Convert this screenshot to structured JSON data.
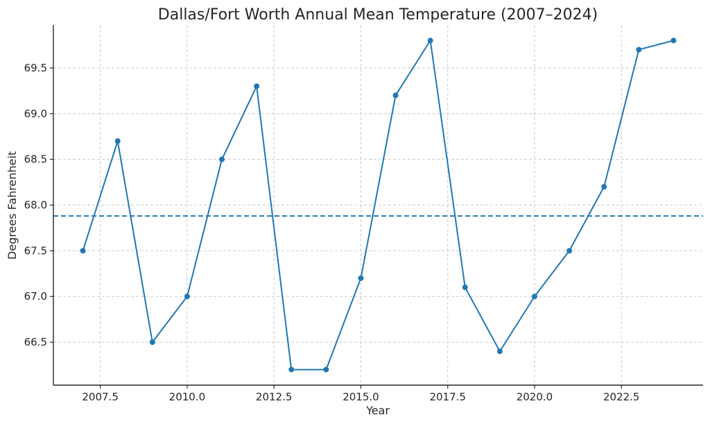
{
  "chart_data": {
    "type": "line",
    "title": "Dallas/Fort Worth Annual Mean Temperature (2007–2024)",
    "xlabel": "Year",
    "ylabel": "Degrees Fahrenheit",
    "xlim": [
      2006.15,
      2024.85
    ],
    "ylim": [
      66.03,
      69.97
    ],
    "xticks": [
      2007.5,
      2010.0,
      2012.5,
      2015.0,
      2017.5,
      2020.0,
      2022.5
    ],
    "xtick_labels": [
      "2007.5",
      "2010.0",
      "2012.5",
      "2015.0",
      "2017.5",
      "2020.0",
      "2022.5"
    ],
    "yticks": [
      66.5,
      67.0,
      67.5,
      68.0,
      68.5,
      69.0,
      69.5
    ],
    "ytick_labels": [
      "66.5",
      "67.0",
      "67.5",
      "68.0",
      "68.5",
      "69.0",
      "69.5"
    ],
    "grid": true,
    "x": [
      2007,
      2008,
      2009,
      2010,
      2011,
      2012,
      2013,
      2014,
      2015,
      2016,
      2017,
      2018,
      2019,
      2020,
      2021,
      2022,
      2023,
      2024
    ],
    "series": [
      {
        "values": [
          67.5,
          68.7,
          66.5,
          67.0,
          68.5,
          69.3,
          66.2,
          66.2,
          67.2,
          69.2,
          69.8,
          67.1,
          66.4,
          67.0,
          67.5,
          68.2,
          69.7,
          69.8
        ],
        "color": "#1f77b4"
      }
    ],
    "reference_line": {
      "y": 67.88,
      "style": "dashed",
      "color": "#1f77b4"
    }
  }
}
